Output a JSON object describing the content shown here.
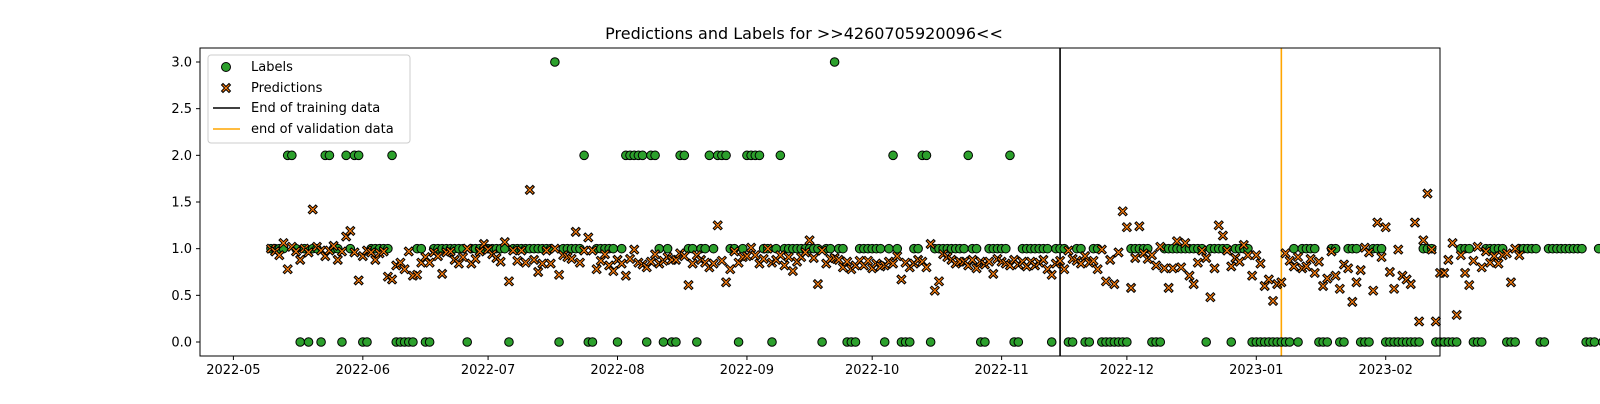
{
  "chart_data": {
    "type": "scatter",
    "title": "Predictions and Labels for >>4260705920096<<",
    "xlabel": "",
    "ylabel": "",
    "xlim": [
      "2022-04-23",
      "2023-02-14"
    ],
    "ylim": [
      -0.15,
      3.15
    ],
    "x_ticks": [
      "2022-05",
      "2022-06",
      "2022-07",
      "2022-08",
      "2022-09",
      "2022-10",
      "2022-11",
      "2022-12",
      "2023-01",
      "2023-02"
    ],
    "y_ticks": [
      "0.0",
      "0.5",
      "1.0",
      "1.5",
      "2.0",
      "2.5",
      "3.0"
    ],
    "grid": false,
    "legend_position": "top-left",
    "legend": {
      "labels": "Labels",
      "predictions": "Predictions",
      "train_end": "End of training data",
      "val_end": "end of validation data"
    },
    "vlines": [
      {
        "name": "End of training data",
        "x": "2022-11-15",
        "color": "#000000"
      },
      {
        "name": "end of validation data",
        "x": "2023-01-07",
        "color": "#ffa500"
      }
    ],
    "colors": {
      "labels": "#2ca02c",
      "predictions": "#ff7f0e",
      "edge": "#000000"
    },
    "start_date": "2022-05-10",
    "series": [
      {
        "name": "Labels",
        "marker": "circle",
        "values": [
          1,
          1,
          1,
          1,
          2,
          2,
          1,
          0,
          1,
          0,
          1,
          1,
          0,
          2,
          2,
          1,
          1,
          0,
          2,
          1,
          2,
          2,
          0,
          0,
          1,
          1,
          1,
          1,
          1,
          2,
          0,
          0,
          0,
          0,
          0,
          1,
          1,
          0,
          0,
          1,
          1,
          1,
          1,
          1,
          1,
          1,
          1,
          0,
          1,
          1,
          1,
          1,
          1,
          1,
          1,
          1,
          1,
          0,
          1,
          1,
          1,
          1,
          1,
          1,
          1,
          1,
          1,
          1,
          3,
          0,
          1,
          1,
          1,
          1,
          1,
          2,
          0,
          0,
          1,
          1,
          1,
          1,
          1,
          0,
          1,
          2,
          2,
          2,
          2,
          2,
          0,
          2,
          2,
          1,
          0,
          1,
          0,
          0,
          2,
          2,
          1,
          1,
          0,
          1,
          1,
          2,
          1,
          2,
          2,
          2,
          1,
          1,
          0,
          1,
          2,
          2,
          2,
          2,
          1,
          1,
          0,
          1,
          2,
          1,
          1,
          1,
          1,
          1,
          1,
          1,
          1,
          1,
          0,
          1,
          1,
          3,
          1,
          1,
          0,
          0,
          0,
          1,
          1,
          1,
          1,
          1,
          1,
          0,
          1,
          2,
          1,
          0,
          0,
          0,
          1,
          1,
          2,
          2,
          0,
          1,
          1,
          1,
          1,
          1,
          1,
          1,
          1,
          2,
          1,
          1,
          0,
          0,
          1,
          1,
          1,
          1,
          1,
          2,
          0,
          0,
          1,
          1,
          1,
          1,
          1,
          1,
          1,
          0,
          1,
          1,
          1,
          0,
          0,
          1,
          1,
          0,
          0,
          1,
          1,
          0,
          0,
          0,
          0,
          0,
          0,
          0,
          1,
          1,
          1,
          1,
          1,
          0,
          0,
          0,
          1,
          1,
          1,
          1,
          1,
          1,
          1,
          1,
          1,
          1,
          0,
          1,
          1,
          1,
          1,
          1,
          0,
          1,
          1,
          1,
          1,
          0,
          0,
          0,
          0,
          0,
          0,
          0,
          0,
          0,
          0,
          1,
          0,
          1,
          1,
          1,
          1,
          0,
          0,
          0,
          1,
          1,
          0,
          0,
          1,
          1,
          1,
          0,
          0,
          0,
          1,
          1,
          1,
          0,
          0,
          0,
          0,
          0,
          0,
          0,
          0,
          0,
          1,
          1,
          1,
          0,
          0,
          0,
          0,
          0,
          0,
          1,
          1,
          1,
          0,
          0,
          0,
          1,
          1,
          1,
          1,
          1,
          0,
          0,
          0,
          1,
          1,
          1,
          1,
          1,
          0,
          0,
          1,
          1,
          1,
          1,
          1,
          1,
          1,
          1,
          1,
          0,
          0,
          0,
          1,
          0,
          0,
          1,
          1,
          0,
          1,
          1,
          1,
          0
        ]
      },
      {
        "name": "Predictions",
        "marker": "x",
        "values": [
          1.0,
          0.97,
          0.93,
          1.06,
          0.78,
          1.02,
          0.97,
          0.88,
          1.0,
          0.96,
          1.42,
          1.02,
          0.98,
          0.92,
          0.98,
          1.03,
          0.88,
          0.97,
          1.13,
          1.19,
          0.96,
          0.66,
          0.92,
          0.98,
          0.96,
          0.88,
          0.95,
          0.97,
          0.7,
          0.67,
          0.82,
          0.85,
          0.78,
          0.97,
          0.71,
          0.72,
          0.85,
          0.91,
          0.85,
          0.96,
          0.92,
          0.73,
          0.96,
          0.97,
          0.88,
          0.84,
          0.91,
          1.0,
          0.84,
          0.89,
          0.97,
          1.05,
          0.99,
          0.94,
          0.9,
          0.86,
          1.07,
          0.65,
          0.98,
          0.87,
          0.98,
          0.85,
          1.63,
          0.88,
          0.75,
          0.84,
          0.98,
          0.84,
          1.0,
          0.72,
          0.93,
          0.91,
          0.89,
          1.18,
          0.85,
          0.98,
          1.12,
          0.98,
          0.78,
          0.87,
          0.94,
          0.82,
          0.76,
          0.88,
          0.84,
          0.71,
          0.89,
          0.99,
          0.85,
          0.83,
          0.8,
          0.86,
          0.94,
          0.84,
          0.87,
          0.91,
          0.88,
          0.88,
          0.95,
          0.92,
          0.61,
          0.84,
          0.93,
          0.88,
          0.85,
          0.8,
          0.84,
          1.25,
          0.87,
          0.64,
          0.78,
          0.97,
          0.85,
          0.91,
          0.92,
          1.01,
          0.93,
          0.84,
          0.89,
          1.0,
          0.85,
          0.88,
          0.93,
          0.82,
          0.91,
          0.76,
          0.86,
          0.91,
          0.96,
          1.09,
          0.9,
          0.62,
          0.98,
          0.84,
          0.89,
          0.9,
          0.88,
          0.8,
          0.86,
          0.78,
          0.82,
          0.87,
          0.82,
          0.87,
          0.79,
          0.84,
          0.81,
          0.82,
          0.86,
          0.84,
          0.92,
          0.67,
          0.85,
          0.8,
          0.84,
          0.88,
          0.86,
          0.8,
          1.05,
          0.55,
          0.65,
          0.94,
          0.91,
          0.88,
          0.84,
          0.86,
          0.86,
          0.82,
          0.88,
          0.79,
          0.86,
          0.83,
          0.86,
          0.73,
          0.89,
          0.86,
          0.84,
          0.82,
          0.88,
          0.83,
          0.86,
          0.81,
          0.86,
          0.82,
          0.85,
          0.88,
          0.78,
          0.72,
          0.84,
          0.87,
          0.78,
          0.98,
          0.89,
          0.87,
          0.84,
          0.92,
          0.85,
          0.87,
          0.78,
          0.99,
          0.65,
          0.88,
          0.62,
          0.96,
          1.4,
          1.23,
          0.58,
          0.9,
          1.24,
          0.95,
          0.89,
          0.93,
          0.82,
          1.02,
          0.79,
          0.58,
          0.79,
          1.08,
          0.8,
          1.06,
          0.71,
          0.62,
          0.85,
          0.98,
          0.9,
          0.48,
          0.79,
          1.25,
          1.14,
          0.98,
          0.81,
          0.9,
          0.86,
          1.04,
          0.93,
          0.71,
          0.93,
          0.84,
          0.6,
          0.67,
          0.44,
          0.62,
          0.64,
          0.95,
          0.87,
          0.81,
          0.91,
          0.79,
          0.81,
          0.89,
          0.74,
          0.86,
          0.6,
          0.68,
          0.97,
          0.71,
          0.57,
          0.83,
          0.79,
          0.43,
          0.64,
          0.77,
          1.01,
          0.96,
          0.55,
          1.28,
          0.91,
          1.23,
          0.75,
          0.57,
          0.99,
          0.71,
          0.67,
          0.62,
          1.28,
          0.22,
          1.09,
          1.59,
          0.99,
          0.22,
          0.74,
          0.74,
          0.88,
          1.06,
          0.29,
          0.93,
          0.74,
          0.61,
          0.87,
          1.02,
          0.8,
          0.97,
          0.85,
          0.92,
          0.84,
          0.93,
          0.95,
          0.64,
          1.0,
          0.93
        ]
      }
    ]
  }
}
